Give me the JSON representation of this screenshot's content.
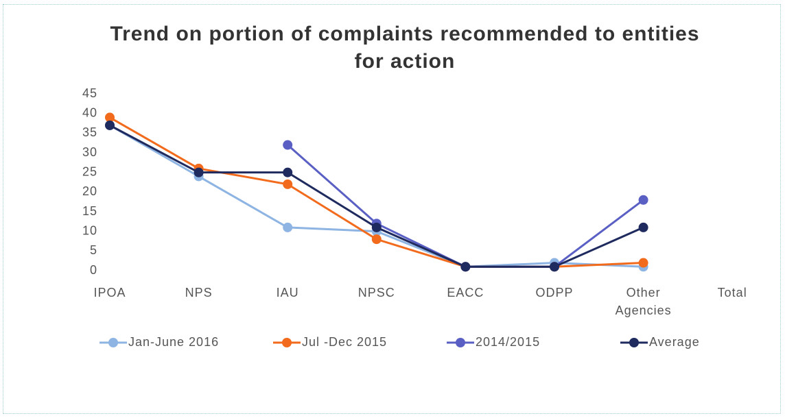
{
  "chart_data": {
    "type": "line",
    "title": "Trend on portion of complaints recommended to entities for action",
    "categories": [
      "IPOA",
      "NPS",
      "IAU",
      "NPSC",
      "EACC",
      "ODPP",
      "Other Agencies",
      "Total"
    ],
    "series": [
      {
        "name": "Jan-June 2016",
        "color": "#8db4e2",
        "values": [
          37,
          24,
          11,
          10,
          1,
          2,
          1,
          null
        ]
      },
      {
        "name": "Jul -Dec 2015",
        "color": "#f26b1d",
        "values": [
          39,
          26,
          22,
          8,
          1,
          1,
          2,
          null
        ]
      },
      {
        "name": "2014/2015",
        "color": "#5a5fc4",
        "values": [
          null,
          null,
          32,
          12,
          1,
          1,
          18,
          null
        ]
      },
      {
        "name": "Average",
        "color": "#1f2a5e",
        "values": [
          37,
          25,
          25,
          11,
          1,
          1,
          11,
          null
        ]
      }
    ],
    "ylim": [
      0,
      45
    ],
    "yticks": [
      0,
      5,
      10,
      15,
      20,
      25,
      30,
      35,
      40,
      45
    ],
    "grid": false,
    "legend": "bottom"
  }
}
